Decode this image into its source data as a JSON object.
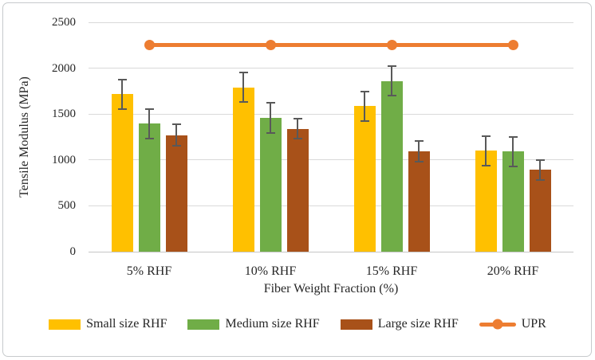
{
  "chart_data": {
    "type": "bar",
    "title": "",
    "categories": [
      "5% RHF",
      "10% RHF",
      "15% RHF",
      "20% RHF"
    ],
    "series": [
      {
        "name": "Small size RHF",
        "type": "bar",
        "color": "#FFC000",
        "values": [
          1715,
          1790,
          1585,
          1100
        ],
        "errors": [
          160,
          160,
          160,
          160
        ]
      },
      {
        "name": "Medium size RHF",
        "type": "bar",
        "color": "#70AD47",
        "values": [
          1395,
          1460,
          1860,
          1090
        ],
        "errors": [
          160,
          165,
          160,
          160
        ]
      },
      {
        "name": "Large size RHF",
        "type": "bar",
        "color": "#A85119",
        "values": [
          1270,
          1340,
          1095,
          890
        ],
        "errors": [
          115,
          110,
          110,
          105
        ]
      },
      {
        "name": "UPR",
        "type": "line",
        "color": "#ED7D31",
        "values": [
          2250,
          2250,
          2250,
          2250
        ]
      }
    ],
    "xlabel": "Fiber Weight Fraction (%)",
    "ylabel": "Tensile Modulus (MPa)",
    "ylim": [
      0,
      2500
    ],
    "ytick_step": 500,
    "ytick_labels": [
      "0",
      "500",
      "1000",
      "1500",
      "2000",
      "2500"
    ],
    "grid": true,
    "legend_position": "bottom",
    "gridline_color": "#d9d9d9",
    "error_bar_color": "#595959",
    "text_color": "#262626"
  }
}
